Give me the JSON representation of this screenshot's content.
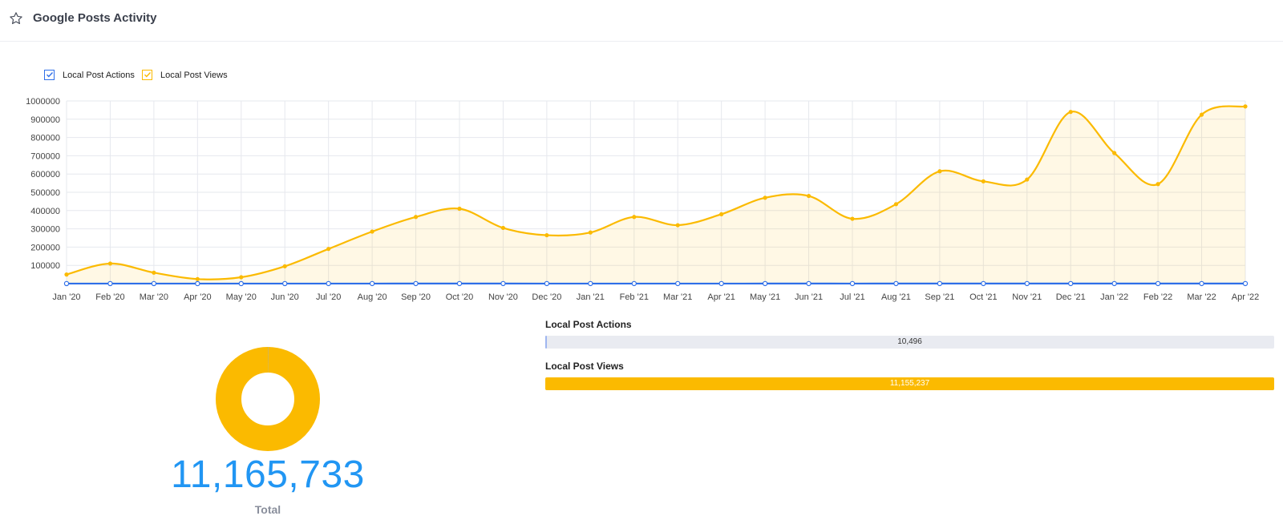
{
  "header": {
    "title": "Google Posts Activity",
    "favorite_icon": "star-icon"
  },
  "legend": [
    {
      "label": "Local Post Actions",
      "color": "#2f6fe8",
      "checked": true
    },
    {
      "label": "Local Post Views",
      "color": "#fbba00",
      "checked": true
    }
  ],
  "chart_data": {
    "type": "area",
    "categories": [
      "Jan '20",
      "Feb '20",
      "Mar '20",
      "Apr '20",
      "May '20",
      "Jun '20",
      "Jul '20",
      "Aug '20",
      "Sep '20",
      "Oct '20",
      "Nov '20",
      "Dec '20",
      "Jan '21",
      "Feb '21",
      "Mar '21",
      "Apr '21",
      "May '21",
      "Jun '21",
      "Jul '21",
      "Aug '21",
      "Sep '21",
      "Oct '21",
      "Nov '21",
      "Dec '21",
      "Jan '22",
      "Feb '22",
      "Mar '22",
      "Apr '22"
    ],
    "series": [
      {
        "name": "Local Post Actions",
        "color": "#2f6fe8",
        "values": [
          300,
          320,
          280,
          250,
          260,
          290,
          330,
          380,
          400,
          420,
          390,
          370,
          360,
          380,
          350,
          370,
          390,
          410,
          380,
          400,
          430,
          420,
          410,
          450,
          430,
          390,
          440,
          456
        ]
      },
      {
        "name": "Local Post Views",
        "color": "#fbba00",
        "values": [
          50000,
          110000,
          60000,
          25000,
          35000,
          95000,
          190000,
          285000,
          365000,
          410000,
          305000,
          265000,
          280000,
          365000,
          320000,
          380000,
          470000,
          480000,
          355000,
          435000,
          615000,
          560000,
          570000,
          940000,
          715000,
          545000,
          925000,
          970000
        ]
      }
    ],
    "yticks": [
      100000,
      200000,
      300000,
      400000,
      500000,
      600000,
      700000,
      800000,
      900000,
      1000000
    ],
    "ylim": [
      0,
      1000000
    ],
    "grid": true,
    "legend_position": "top-left"
  },
  "bars": [
    {
      "label": "Local Post Actions",
      "value_text": "10,496",
      "value": 10496,
      "max": 11155237,
      "color": "#9fb6f0",
      "text_color": "#333333"
    },
    {
      "label": "Local Post Views",
      "value_text": "11,155,237",
      "value": 11155237,
      "max": 11155237,
      "color": "#fbba00",
      "text_color": "#ffffff"
    }
  ],
  "donut": {
    "segments": [
      {
        "name": "Local Post Actions",
        "value": 10496,
        "color": "#2f6fe8"
      },
      {
        "name": "Local Post Views",
        "value": 11155237,
        "color": "#fbba00"
      }
    ]
  },
  "total": {
    "value": "11,165,733",
    "label": "Total"
  }
}
